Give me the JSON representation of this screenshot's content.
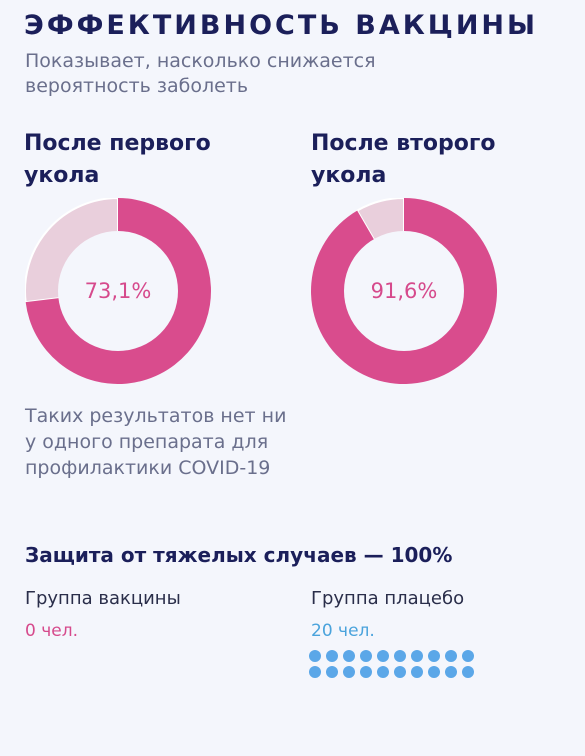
{
  "header": {
    "title": "ЭФФЕКТИВНОСТЬ ВАКЦИНЫ",
    "subtitle": "Показывает, насколько снижается вероятность заболеть"
  },
  "doses": [
    {
      "title": "После первого укола",
      "percent": 73.1,
      "label": "73,1%"
    },
    {
      "title": "После второго укола",
      "percent": 91.6,
      "label": "91,6%"
    }
  ],
  "note": "Таких результатов нет ни у одного препарата для профилактики COVID-19",
  "protection": {
    "title": "Защита от тяжелых случаев — 100%",
    "vaccine_group": {
      "label": "Группа вакцины",
      "count": "0 чел.",
      "cases": 0
    },
    "placebo_group": {
      "label": "Группа плацебо",
      "count": "20 чел.",
      "cases": 20
    }
  },
  "colors": {
    "filled": "#d94c8d",
    "rest": "#e9cfdc",
    "title": "#1b1f5a",
    "vaccine_count": "#d64a8c",
    "placebo_count": "#4aa3dc",
    "dot": "#5ba7e8",
    "donut_center": "#f4f6fc"
  }
}
